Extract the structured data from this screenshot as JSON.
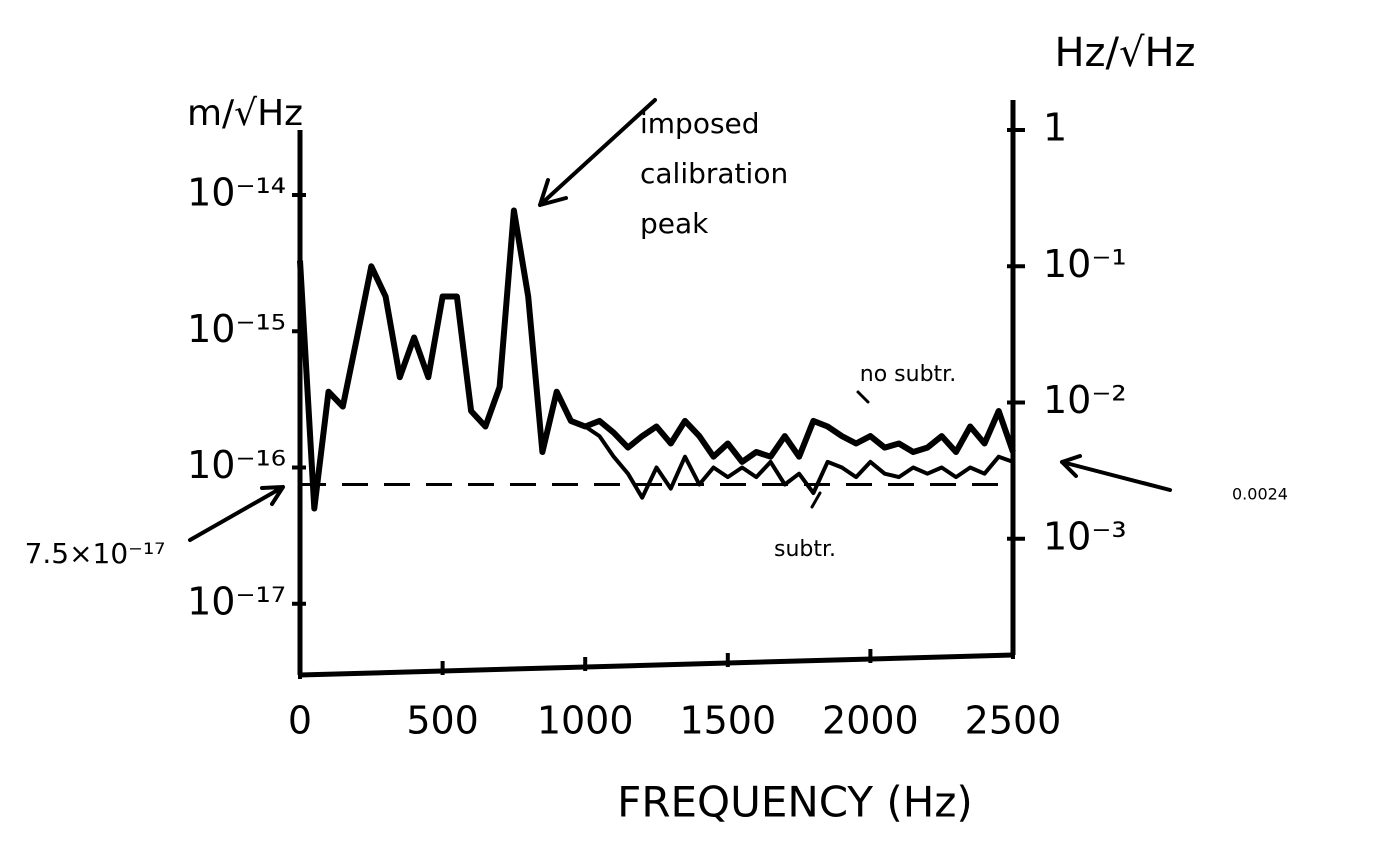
{
  "chart_data": {
    "type": "line",
    "y_label": "m/√Hz",
    "y2_label": "Hz/√Hz",
    "x_label": "FREQUENCY (Hz)",
    "x": [
      0,
      50,
      100,
      150,
      200,
      250,
      300,
      350,
      400,
      450,
      500,
      550,
      600,
      650,
      700,
      750,
      800,
      850,
      900,
      950,
      1000,
      1050,
      1100,
      1150,
      1200,
      1250,
      1300,
      1350,
      1400,
      1450,
      1500,
      1550,
      1600,
      1650,
      1700,
      1750,
      1800,
      1850,
      1900,
      1950,
      2000,
      2050,
      2100,
      2150,
      2200,
      2250,
      2300,
      2350,
      2400,
      2450,
      2500
    ],
    "series": [
      {
        "name": "no subtr.",
        "color": "#000000",
        "values": [
          3.3e-15,
          5e-17,
          3.6e-16,
          2.8e-16,
          9e-16,
          3e-15,
          1.8e-15,
          4.6e-16,
          9e-16,
          4.6e-16,
          1.8e-15,
          1.8e-15,
          2.6e-16,
          2e-16,
          3.9e-16,
          7.7e-15,
          1.8e-15,
          1.3e-16,
          3.6e-16,
          2.2e-16,
          2e-16,
          2.2e-16,
          1.8e-16,
          1.4e-16,
          1.7e-16,
          2e-16,
          1.5e-16,
          2.2e-16,
          1.7e-16,
          1.2e-16,
          1.5e-16,
          1.1e-16,
          1.3e-16,
          1.2e-16,
          1.7e-16,
          1.2e-16,
          2.2e-16,
          2e-16,
          1.7e-16,
          1.5e-16,
          1.7e-16,
          1.4e-16,
          1.5e-16,
          1.3e-16,
          1.4e-16,
          1.7e-16,
          1.3e-16,
          2e-16,
          1.5e-16,
          2.6e-16,
          1.3e-16
        ]
      },
      {
        "name": "subtr.",
        "color": "#000000",
        "values": [
          3.3e-15,
          5e-17,
          3.6e-16,
          2.8e-16,
          9e-16,
          3e-15,
          1.8e-15,
          4.6e-16,
          9e-16,
          4.6e-16,
          1.8e-15,
          1.8e-15,
          2.6e-16,
          2e-16,
          3.9e-16,
          7.7e-15,
          1.8e-15,
          1.3e-16,
          3.6e-16,
          2.2e-16,
          2e-16,
          1.7e-16,
          1.2e-16,
          9e-17,
          6e-17,
          1e-16,
          7e-17,
          1.2e-16,
          7.5e-17,
          1e-16,
          8.5e-17,
          1e-16,
          8.5e-17,
          1.1e-16,
          7.5e-17,
          9e-17,
          6.5e-17,
          1.1e-16,
          1e-16,
          8.5e-17,
          1.1e-16,
          9e-17,
          8.5e-17,
          1e-16,
          9e-17,
          1e-16,
          8.5e-17,
          1e-16,
          9e-17,
          1.2e-16,
          1.1e-16
        ]
      }
    ],
    "xlim": [
      0,
      2500
    ],
    "xticks": [
      0,
      500,
      1000,
      1500,
      2000,
      2500
    ],
    "ylim": [
      3e-18,
      3e-14
    ],
    "log_y": true,
    "yticks": [
      {
        "value": 1e-14,
        "label": "10⁻¹⁴"
      },
      {
        "value": 1e-15,
        "label": "10⁻¹⁵"
      },
      {
        "value": 1e-16,
        "label": "10⁻¹⁶"
      },
      {
        "value": 1e-17,
        "label": "10⁻¹⁷"
      }
    ],
    "y2lim": [
      0.0001,
      1
    ],
    "y2ticks": [
      1,
      {
        "value": 0.1,
        "label": "10⁻¹"
      },
      {
        "value": 0.01,
        "label": "10⁻²"
      },
      {
        "value": 0.001,
        "label": "10⁻³"
      }
    ],
    "reference_line": {
      "value": 7.5e-17,
      "label": "7.5×10⁻¹⁷",
      "y2_label": "0.0024"
    },
    "annotation": [
      "imposed",
      "calibration",
      "peak"
    ]
  }
}
